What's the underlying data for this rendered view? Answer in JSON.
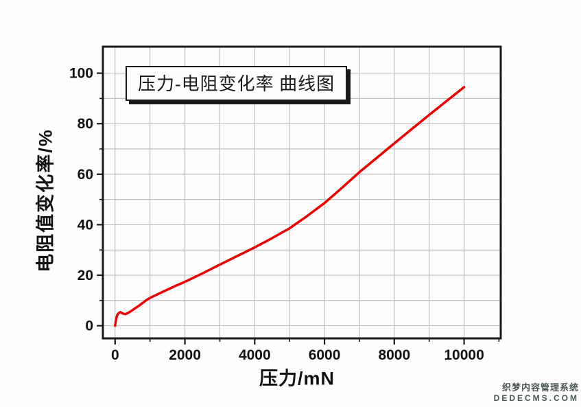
{
  "watermark": {
    "line1": "织梦内容管理系统",
    "line2": "DEDECMS.COM"
  },
  "chart_data": {
    "type": "line",
    "title": "压力-电阻变化率 曲线图",
    "xlabel": "压力/mN",
    "ylabel": "电阻值变化率/%",
    "xlim": [
      -350,
      11050
    ],
    "ylim": [
      -5,
      110.5
    ],
    "x_ticks_major": [
      0,
      2000,
      4000,
      6000,
      8000,
      10000
    ],
    "x_ticks_minor": [
      1000,
      3000,
      5000,
      7000,
      9000,
      11000
    ],
    "y_ticks_major": [
      0,
      20,
      40,
      60,
      80,
      100
    ],
    "y_ticks_minor": [
      10,
      30,
      50,
      70,
      90
    ],
    "grid": {
      "x_values": [
        0,
        1000,
        2000,
        3000,
        4000,
        5000,
        6000,
        7000,
        8000,
        9000,
        10000
      ],
      "y_values": [
        0,
        10,
        20,
        30,
        40,
        50,
        60,
        70,
        80,
        90,
        100
      ],
      "color": "#b4b4b4"
    },
    "legend_position": "none",
    "frame_color": "#1a1a1a",
    "series": [
      {
        "name": "压力-电阻变化率",
        "color": "#ee0000",
        "points": [
          [
            0,
            0
          ],
          [
            30,
            2.6
          ],
          [
            60,
            4.2
          ],
          [
            100,
            5.0
          ],
          [
            150,
            5.4
          ],
          [
            220,
            4.8
          ],
          [
            300,
            4.6
          ],
          [
            400,
            5.3
          ],
          [
            500,
            6.2
          ],
          [
            700,
            8.1
          ],
          [
            900,
            10.2
          ],
          [
            1000,
            11.0
          ],
          [
            1250,
            12.7
          ],
          [
            1500,
            14.3
          ],
          [
            1750,
            15.9
          ],
          [
            2000,
            17.4
          ],
          [
            2500,
            20.7
          ],
          [
            3000,
            24.2
          ],
          [
            3500,
            27.6
          ],
          [
            4000,
            31.0
          ],
          [
            4500,
            34.7
          ],
          [
            5000,
            38.6
          ],
          [
            5500,
            43.4
          ],
          [
            6000,
            48.6
          ],
          [
            6500,
            54.6
          ],
          [
            7000,
            60.8
          ],
          [
            7500,
            66.5
          ],
          [
            8000,
            72.2
          ],
          [
            8500,
            77.9
          ],
          [
            9000,
            83.5
          ],
          [
            9500,
            89.0
          ],
          [
            10000,
            94.5
          ]
        ]
      }
    ]
  }
}
